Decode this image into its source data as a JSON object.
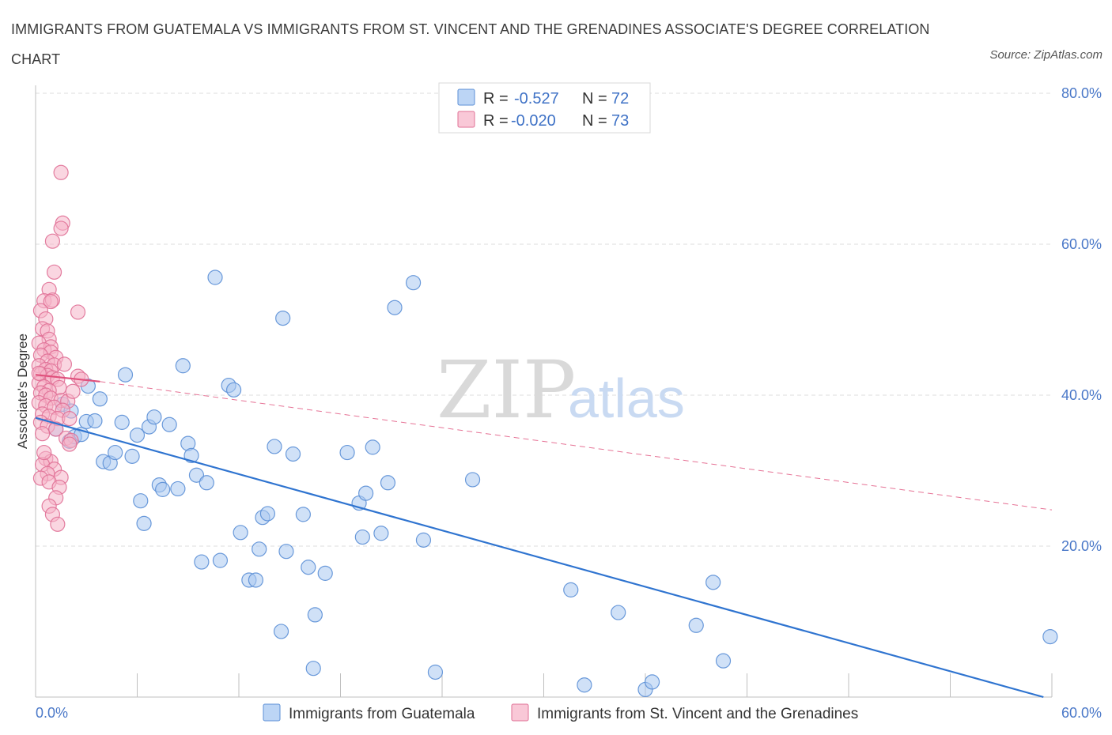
{
  "title": "IMMIGRANTS FROM GUATEMALA VS IMMIGRANTS FROM ST. VINCENT AND THE GRENADINES ASSOCIATE'S DEGREE CORRELATION CHART",
  "source": "Source: ZipAtlas.com",
  "watermark": {
    "zip": "ZIP",
    "atlas": "atlas"
  },
  "legend": {
    "series1": {
      "r_label": "R =",
      "r_value": "-0.527",
      "n_label": "N =",
      "n_value": "72"
    },
    "series2": {
      "r_label": "R =",
      "r_value": "-0.020",
      "n_label": "N =",
      "n_value": "73"
    }
  },
  "colors": {
    "blue_fill": "#a9c8f0",
    "blue_stroke": "#5b8fd6",
    "blue_line": "#2f74d0",
    "pink_fill": "#f6b5c9",
    "pink_stroke": "#e07096",
    "pink_line": "#e0507c",
    "grid": "#dcdcdc",
    "axis_text": "#4a78c8"
  },
  "chart_data": {
    "type": "scatter",
    "xlabel": "",
    "ylabel": "Associate's Degree",
    "xlim": [
      0,
      60
    ],
    "ylim": [
      0,
      80
    ],
    "x_tick_labels": [
      "0.0%",
      "60.0%"
    ],
    "y_ticks": [
      20,
      40,
      60,
      80
    ],
    "y_tick_labels": [
      "20.0%",
      "40.0%",
      "60.0%",
      "80.0%"
    ],
    "grid": true,
    "legend_position": "top-center",
    "series": [
      {
        "name": "Immigrants from Guatemala",
        "color": "#a9c8f0",
        "trend": {
          "x": [
            0,
            59.5
          ],
          "y": [
            37.0,
            0.0
          ],
          "style": "solid"
        },
        "points": [
          [
            1.2,
            35.5
          ],
          [
            1.6,
            38.8
          ],
          [
            2.1,
            37.9
          ],
          [
            2.0,
            33.9
          ],
          [
            2.3,
            34.5
          ],
          [
            2.7,
            34.8
          ],
          [
            3.0,
            36.5
          ],
          [
            3.1,
            41.2
          ],
          [
            3.5,
            36.6
          ],
          [
            3.8,
            39.5
          ],
          [
            4.0,
            31.2
          ],
          [
            4.4,
            31.0
          ],
          [
            4.7,
            32.4
          ],
          [
            5.1,
            36.4
          ],
          [
            5.3,
            42.7
          ],
          [
            5.7,
            31.9
          ],
          [
            6.0,
            34.7
          ],
          [
            6.2,
            26.0
          ],
          [
            6.4,
            23.0
          ],
          [
            6.7,
            35.8
          ],
          [
            7.0,
            37.1
          ],
          [
            7.3,
            28.1
          ],
          [
            7.5,
            27.5
          ],
          [
            7.9,
            36.1
          ],
          [
            8.4,
            27.6
          ],
          [
            8.7,
            43.9
          ],
          [
            9.0,
            33.6
          ],
          [
            9.2,
            32.0
          ],
          [
            9.5,
            29.4
          ],
          [
            9.8,
            17.9
          ],
          [
            10.1,
            28.4
          ],
          [
            10.6,
            55.6
          ],
          [
            10.9,
            18.1
          ],
          [
            11.4,
            41.3
          ],
          [
            11.7,
            40.7
          ],
          [
            12.1,
            21.8
          ],
          [
            12.6,
            15.5
          ],
          [
            13.0,
            15.5
          ],
          [
            13.2,
            19.6
          ],
          [
            13.4,
            23.8
          ],
          [
            13.7,
            24.3
          ],
          [
            14.1,
            33.2
          ],
          [
            14.5,
            8.7
          ],
          [
            14.6,
            50.2
          ],
          [
            14.8,
            19.3
          ],
          [
            15.2,
            32.2
          ],
          [
            15.8,
            24.2
          ],
          [
            16.1,
            17.2
          ],
          [
            16.5,
            10.9
          ],
          [
            17.1,
            16.4
          ],
          [
            16.4,
            3.8
          ],
          [
            18.4,
            32.4
          ],
          [
            19.1,
            25.7
          ],
          [
            19.3,
            21.2
          ],
          [
            19.5,
            27.0
          ],
          [
            19.9,
            33.1
          ],
          [
            20.4,
            21.7
          ],
          [
            20.8,
            28.4
          ],
          [
            21.2,
            51.6
          ],
          [
            22.3,
            54.9
          ],
          [
            22.9,
            20.8
          ],
          [
            23.6,
            3.3
          ],
          [
            25.8,
            28.8
          ],
          [
            31.6,
            14.2
          ],
          [
            32.4,
            1.6
          ],
          [
            34.4,
            11.2
          ],
          [
            36.0,
            1.0
          ],
          [
            36.4,
            2.0
          ],
          [
            39.0,
            9.5
          ],
          [
            40.0,
            15.2
          ],
          [
            40.6,
            4.8
          ],
          [
            59.9,
            8.0
          ]
        ]
      },
      {
        "name": "Immigrants from St. Vincent and the Grenadines",
        "color": "#f6b5c9",
        "trend": {
          "x": [
            0,
            3.8
          ],
          "y": [
            42.7,
            41.8
          ],
          "style": "solid",
          "extended": {
            "x": [
              3.8,
              60
            ],
            "y": [
              41.8,
              24.8
            ],
            "style": "dashed"
          }
        },
        "points": [
          [
            1.5,
            69.5
          ],
          [
            1.6,
            62.8
          ],
          [
            1.5,
            62.1
          ],
          [
            1.0,
            60.4
          ],
          [
            1.1,
            56.3
          ],
          [
            0.8,
            54.0
          ],
          [
            0.5,
            52.5
          ],
          [
            1.0,
            52.6
          ],
          [
            0.9,
            52.4
          ],
          [
            0.3,
            51.2
          ],
          [
            2.5,
            51.0
          ],
          [
            0.6,
            50.1
          ],
          [
            0.4,
            48.8
          ],
          [
            0.7,
            48.5
          ],
          [
            0.8,
            47.4
          ],
          [
            0.2,
            46.9
          ],
          [
            0.9,
            46.4
          ],
          [
            0.5,
            46.0
          ],
          [
            0.9,
            45.7
          ],
          [
            0.3,
            45.3
          ],
          [
            1.2,
            45.0
          ],
          [
            0.7,
            44.5
          ],
          [
            1.1,
            44.0
          ],
          [
            0.2,
            43.9
          ],
          [
            0.6,
            43.4
          ],
          [
            0.9,
            43.2
          ],
          [
            0.3,
            42.8
          ],
          [
            0.7,
            42.6
          ],
          [
            1.0,
            42.3
          ],
          [
            2.5,
            42.5
          ],
          [
            2.7,
            42.1
          ],
          [
            1.3,
            42.1
          ],
          [
            0.2,
            41.6
          ],
          [
            0.5,
            41.1
          ],
          [
            1.4,
            41.0
          ],
          [
            0.8,
            40.6
          ],
          [
            0.3,
            40.3
          ],
          [
            0.6,
            40.0
          ],
          [
            0.9,
            39.6
          ],
          [
            1.5,
            39.3
          ],
          [
            1.9,
            39.2
          ],
          [
            0.2,
            39.0
          ],
          [
            0.6,
            38.6
          ],
          [
            1.1,
            38.4
          ],
          [
            1.6,
            38.0
          ],
          [
            0.4,
            37.5
          ],
          [
            0.8,
            37.2
          ],
          [
            1.3,
            36.9
          ],
          [
            2.0,
            36.9
          ],
          [
            0.3,
            36.4
          ],
          [
            0.7,
            35.9
          ],
          [
            1.2,
            35.5
          ],
          [
            0.4,
            34.9
          ],
          [
            1.8,
            34.3
          ],
          [
            2.1,
            34.0
          ],
          [
            2.0,
            33.5
          ],
          [
            0.6,
            31.6
          ],
          [
            0.9,
            31.2
          ],
          [
            0.4,
            30.8
          ],
          [
            1.1,
            30.2
          ],
          [
            0.7,
            29.6
          ],
          [
            1.5,
            29.1
          ],
          [
            0.3,
            29.0
          ],
          [
            0.8,
            28.5
          ],
          [
            1.4,
            27.8
          ],
          [
            1.2,
            26.4
          ],
          [
            0.8,
            25.3
          ],
          [
            1.0,
            24.2
          ],
          [
            1.3,
            22.9
          ],
          [
            0.5,
            32.4
          ],
          [
            2.2,
            40.5
          ],
          [
            0.2,
            42.9
          ],
          [
            1.7,
            44.1
          ]
        ]
      }
    ]
  }
}
